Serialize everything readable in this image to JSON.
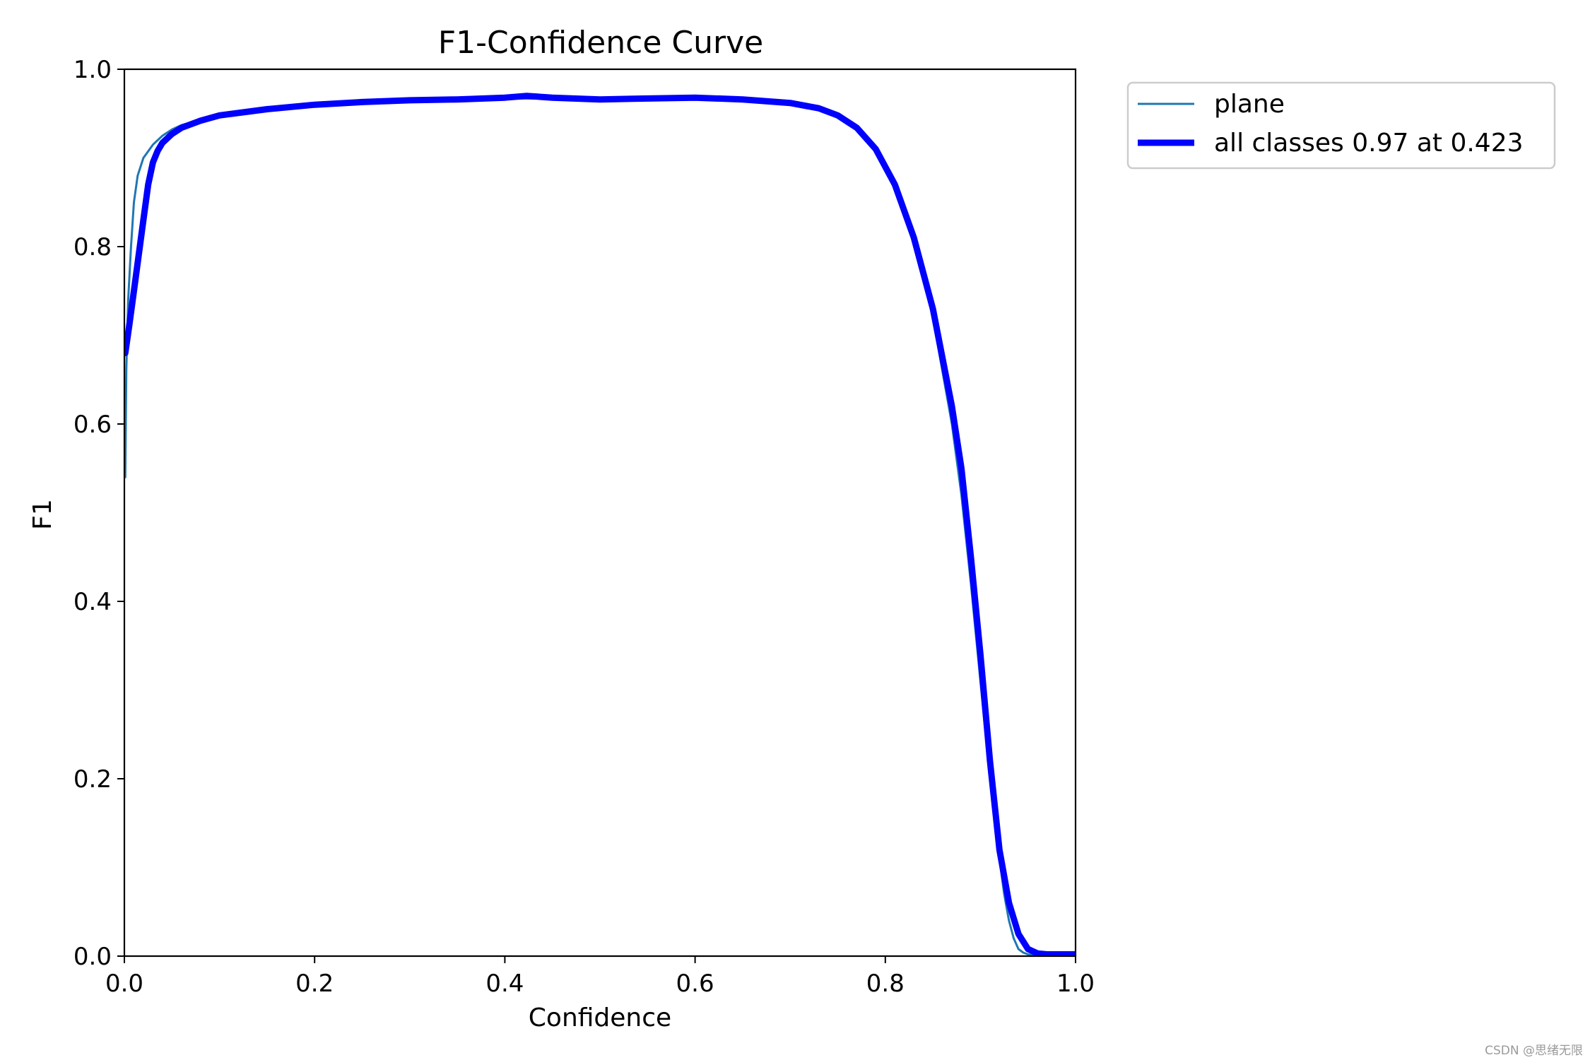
{
  "chart_data": {
    "type": "line",
    "title": "F1-Confidence Curve",
    "xlabel": "Confidence",
    "ylabel": "F1",
    "xlim": [
      0,
      1
    ],
    "ylim": [
      0,
      1
    ],
    "xticks": [
      "0.0",
      "0.2",
      "0.4",
      "0.6",
      "0.8",
      "1.0"
    ],
    "yticks": [
      "0.0",
      "0.2",
      "0.4",
      "0.6",
      "0.8",
      "1.0"
    ],
    "grid": false,
    "legend_position": "outside-upper-right",
    "series": [
      {
        "name": "plane",
        "color": "#1f77b4",
        "x": [
          0.001,
          0.002,
          0.004,
          0.007,
          0.01,
          0.014,
          0.02,
          0.03,
          0.04,
          0.05,
          0.06,
          0.08,
          0.1,
          0.15,
          0.2,
          0.25,
          0.3,
          0.35,
          0.4,
          0.45,
          0.5,
          0.55,
          0.6,
          0.65,
          0.7,
          0.73,
          0.75,
          0.77,
          0.79,
          0.81,
          0.83,
          0.85,
          0.87,
          0.88,
          0.89,
          0.9,
          0.91,
          0.92,
          0.925,
          0.93,
          0.935,
          0.94,
          0.945,
          0.95,
          0.955,
          0.96,
          0.97,
          0.98,
          1.0
        ],
        "y": [
          0.54,
          0.66,
          0.74,
          0.8,
          0.85,
          0.88,
          0.9,
          0.915,
          0.925,
          0.932,
          0.937,
          0.943,
          0.948,
          0.955,
          0.96,
          0.963,
          0.965,
          0.966,
          0.967,
          0.967,
          0.966,
          0.966,
          0.967,
          0.966,
          0.962,
          0.956,
          0.948,
          0.934,
          0.91,
          0.87,
          0.81,
          0.72,
          0.6,
          0.52,
          0.42,
          0.31,
          0.2,
          0.11,
          0.07,
          0.04,
          0.02,
          0.008,
          0.004,
          0.002,
          0.001,
          0.0,
          0.0,
          0.0,
          0.0
        ]
      },
      {
        "name": "all classes 0.97 at 0.423",
        "color": "#0000ff",
        "x": [
          0.001,
          0.005,
          0.01,
          0.015,
          0.02,
          0.025,
          0.03,
          0.035,
          0.04,
          0.05,
          0.06,
          0.08,
          0.1,
          0.15,
          0.2,
          0.25,
          0.3,
          0.35,
          0.4,
          0.423,
          0.45,
          0.5,
          0.55,
          0.6,
          0.65,
          0.7,
          0.73,
          0.75,
          0.77,
          0.79,
          0.81,
          0.83,
          0.85,
          0.87,
          0.88,
          0.89,
          0.9,
          0.91,
          0.92,
          0.93,
          0.94,
          0.95,
          0.96,
          0.97,
          0.98,
          0.99,
          1.0
        ],
        "y": [
          0.68,
          0.71,
          0.75,
          0.79,
          0.83,
          0.87,
          0.895,
          0.908,
          0.917,
          0.927,
          0.934,
          0.942,
          0.948,
          0.955,
          0.96,
          0.963,
          0.965,
          0.966,
          0.968,
          0.97,
          0.968,
          0.966,
          0.967,
          0.968,
          0.966,
          0.962,
          0.956,
          0.948,
          0.934,
          0.91,
          0.87,
          0.81,
          0.73,
          0.62,
          0.55,
          0.45,
          0.34,
          0.22,
          0.12,
          0.06,
          0.025,
          0.008,
          0.003,
          0.002,
          0.002,
          0.002,
          0.002
        ]
      }
    ],
    "watermark": "CSDN @思绪无限"
  }
}
